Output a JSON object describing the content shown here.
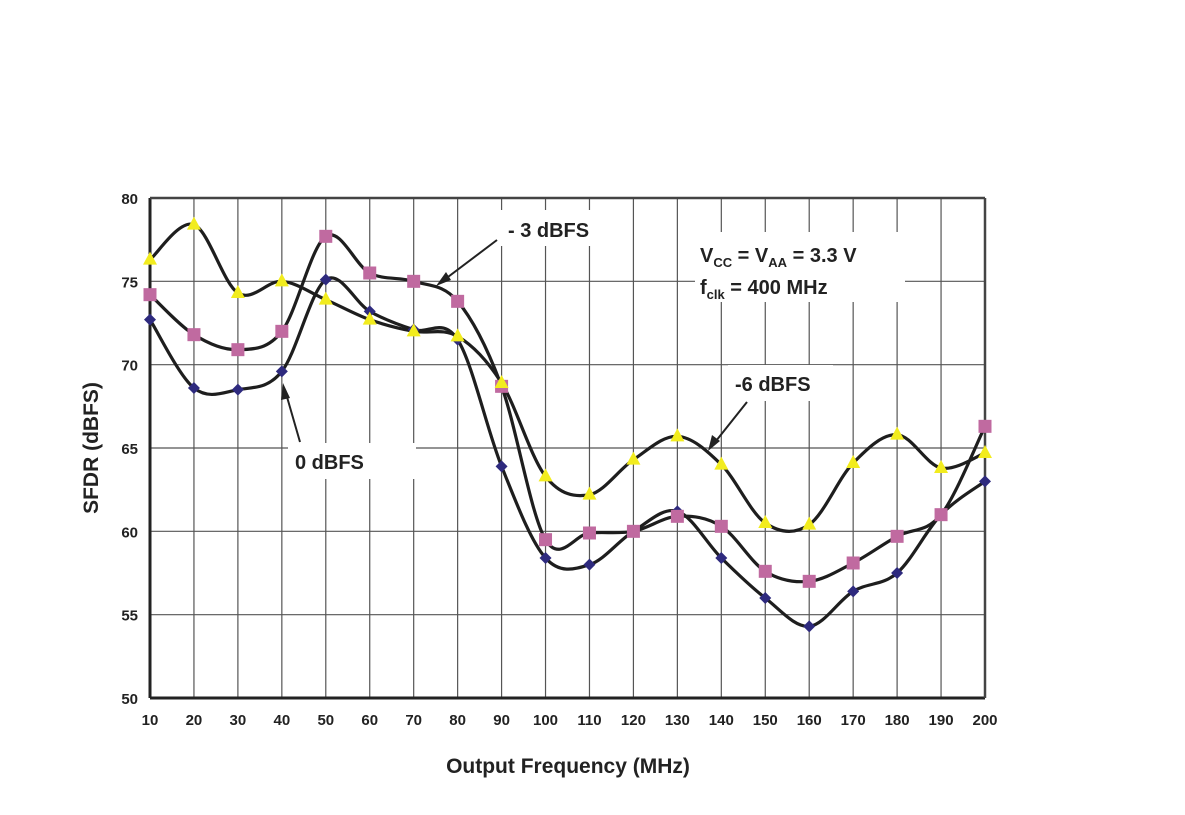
{
  "chart_data": {
    "type": "line",
    "title": "",
    "xlabel": "Output Frequency (MHz)",
    "ylabel": "SFDR (dBFS)",
    "xlim": [
      10,
      200
    ],
    "ylim": [
      50,
      80
    ],
    "xticks": [
      10,
      20,
      30,
      40,
      50,
      60,
      70,
      80,
      90,
      100,
      110,
      120,
      130,
      140,
      150,
      160,
      170,
      180,
      190,
      200
    ],
    "yticks": [
      50,
      55,
      60,
      65,
      70,
      75,
      80
    ],
    "grid": true,
    "smooth": true,
    "x": [
      10,
      20,
      30,
      40,
      50,
      60,
      70,
      80,
      90,
      100,
      110,
      120,
      130,
      140,
      150,
      160,
      170,
      180,
      190,
      200
    ],
    "series": [
      {
        "name": "0 dBFS",
        "marker": "diamond",
        "color": "#2e2a7e",
        "values": [
          72.7,
          68.6,
          68.5,
          69.6,
          75.1,
          73.2,
          72.1,
          71.5,
          63.9,
          58.4,
          58.0,
          60.0,
          61.2,
          58.4,
          56.0,
          54.3,
          56.4,
          57.5,
          61.0,
          63.0
        ]
      },
      {
        "name": "- 3 dBFS",
        "marker": "square",
        "color": "#c06aa0",
        "values": [
          74.2,
          71.8,
          70.9,
          72.0,
          77.7,
          75.5,
          75.0,
          73.8,
          68.7,
          59.5,
          59.9,
          60.0,
          60.9,
          60.3,
          57.6,
          57.0,
          58.1,
          59.7,
          61.0,
          66.3
        ]
      },
      {
        "name": "-6 dBFS",
        "marker": "triangle",
        "color": "#f2ec1e",
        "values": [
          76.3,
          78.4,
          74.3,
          75.0,
          73.9,
          72.7,
          72.0,
          71.7,
          68.9,
          63.3,
          62.2,
          64.3,
          65.7,
          64.0,
          60.5,
          60.4,
          64.1,
          65.8,
          63.8,
          64.7
        ]
      }
    ],
    "annotations": {
      "conditions": {
        "vcc": "V",
        "vcc_sub": "CC",
        "eq1": " = V",
        "vaa_sub": "AA",
        "eq2": " = 3.3 V",
        "fclk": "f",
        "fclk_sub": "clk",
        "fclk_val": " = 400 MHz"
      }
    }
  }
}
